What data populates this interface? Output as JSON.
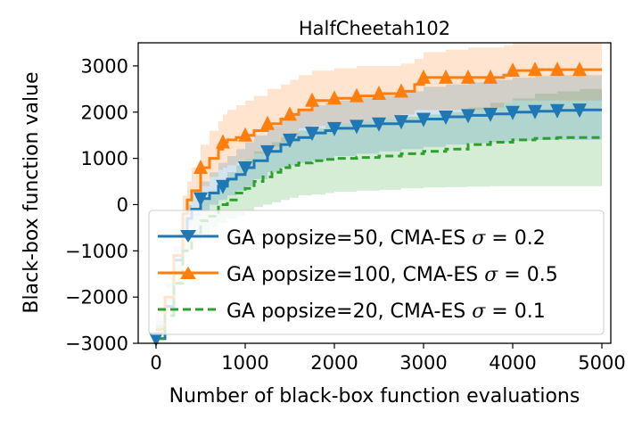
{
  "chart_data": {
    "type": "line",
    "title": "HalfCheetah102",
    "xlabel": "Number of black-box function evaluations",
    "ylabel": "Black-box function value",
    "xlim": [
      -200,
      5100
    ],
    "ylim": [
      -3000,
      3500
    ],
    "xticks": [
      0,
      1000,
      2000,
      3000,
      4000,
      5000
    ],
    "xtick_labels": [
      "0",
      "1000",
      "2000",
      "3000",
      "4000",
      "5000"
    ],
    "yticks": [
      -3000,
      -2000,
      -1000,
      0,
      1000,
      2000,
      3000
    ],
    "ytick_labels": [
      "−3000",
      "−2000",
      "−1000",
      "0",
      "1000",
      "2000",
      "3000"
    ],
    "legend_position": "lower-right",
    "series": [
      {
        "name_prefix": "GA popsize=50, CMA-ES ",
        "sigma_value": "0.2",
        "color": "#1f77b4",
        "linestyle": "solid",
        "marker": "triangle-down",
        "x": [
          0,
          100,
          200,
          300,
          350,
          400,
          500,
          600,
          700,
          800,
          900,
          1000,
          1100,
          1250,
          1400,
          1500,
          1600,
          1750,
          1900,
          2000,
          2250,
          2500,
          2750,
          3000,
          3250,
          3500,
          3750,
          4000,
          4250,
          4500,
          4750,
          5000
        ],
        "y": [
          -2900,
          -2200,
          -1200,
          -700,
          -300,
          -100,
          130,
          250,
          400,
          550,
          650,
          800,
          950,
          1150,
          1300,
          1400,
          1450,
          1550,
          1600,
          1650,
          1700,
          1750,
          1800,
          1850,
          1900,
          1930,
          1960,
          2000,
          2020,
          2040,
          2050,
          2050
        ],
        "band_upper": [
          -2500,
          -1700,
          -900,
          -300,
          0,
          200,
          500,
          700,
          900,
          1050,
          1200,
          1350,
          1500,
          1700,
          1850,
          1950,
          2050,
          2150,
          2200,
          2250,
          2300,
          2350,
          2450,
          2550,
          2600,
          2650,
          2700,
          2750,
          2780,
          2800,
          2800,
          2800
        ],
        "band_lower": [
          -3000,
          -2700,
          -1800,
          -1200,
          -700,
          -500,
          -250,
          -150,
          0,
          100,
          200,
          300,
          400,
          550,
          700,
          800,
          850,
          900,
          950,
          1000,
          1050,
          1100,
          1150,
          1200,
          1250,
          1300,
          1330,
          1350,
          1380,
          1400,
          1400,
          1400
        ],
        "marker_x": [
          0,
          500,
          750,
          1000,
          1250,
          1500,
          1750,
          2000,
          2250,
          2500,
          2750,
          3000,
          3250,
          3500,
          3750,
          4000,
          4250,
          4500,
          4750
        ]
      },
      {
        "name_prefix": "GA popsize=100, CMA-ES ",
        "sigma_value": "0.5",
        "color": "#ff7f0e",
        "linestyle": "solid",
        "marker": "triangle-up",
        "x": [
          0,
          100,
          200,
          300,
          350,
          400,
          500,
          600,
          700,
          750,
          800,
          900,
          1000,
          1100,
          1250,
          1400,
          1500,
          1600,
          1750,
          2000,
          2250,
          2500,
          2750,
          2900,
          3000,
          3250,
          3500,
          3750,
          3900,
          4000,
          4250,
          4500,
          4750,
          5000
        ],
        "y": [
          -2700,
          -2000,
          -1100,
          -200,
          100,
          300,
          800,
          1000,
          1200,
          1350,
          1400,
          1450,
          1500,
          1600,
          1750,
          1850,
          1950,
          2050,
          2250,
          2300,
          2350,
          2400,
          2450,
          2600,
          2750,
          2750,
          2750,
          2750,
          2800,
          2900,
          2920,
          2920,
          2920,
          2920
        ],
        "band_upper": [
          -2300,
          -1500,
          -600,
          200,
          500,
          800,
          1300,
          1600,
          1800,
          1950,
          2050,
          2150,
          2250,
          2350,
          2500,
          2600,
          2700,
          2800,
          2900,
          2950,
          3000,
          3000,
          3050,
          3150,
          3300,
          3350,
          3400,
          3400,
          3450,
          3500,
          3500,
          3500,
          3500,
          3500
        ],
        "band_lower": [
          -3000,
          -2500,
          -1600,
          -700,
          -400,
          -200,
          200,
          400,
          600,
          750,
          800,
          850,
          900,
          1000,
          1100,
          1250,
          1350,
          1450,
          1650,
          1700,
          1750,
          1800,
          1850,
          1950,
          2050,
          2050,
          2050,
          2050,
          2100,
          2200,
          2250,
          2250,
          2250,
          2250
        ],
        "marker_x": [
          500,
          750,
          1000,
          1250,
          1500,
          1750,
          2000,
          2250,
          2500,
          2750,
          3000,
          3250,
          3500,
          3750,
          4000,
          4250,
          4500,
          4750
        ]
      },
      {
        "name_prefix": "GA popsize=20, CMA-ES ",
        "sigma_value": "0.1",
        "color": "#2ca02c",
        "linestyle": "dashed",
        "marker": "none",
        "x": [
          0,
          100,
          200,
          300,
          400,
          500,
          600,
          700,
          800,
          900,
          1000,
          1100,
          1200,
          1300,
          1400,
          1500,
          1600,
          1750,
          1900,
          2000,
          2250,
          2500,
          2750,
          3000,
          3250,
          3500,
          3750,
          4000,
          4250,
          4500,
          4750,
          5000
        ],
        "y": [
          -2900,
          -2400,
          -1700,
          -1000,
          -600,
          -350,
          -250,
          0,
          100,
          250,
          350,
          500,
          600,
          700,
          800,
          850,
          900,
          950,
          980,
          1000,
          1020,
          1050,
          1100,
          1150,
          1200,
          1300,
          1350,
          1400,
          1430,
          1450,
          1450,
          1450
        ],
        "band_upper": [
          -2600,
          -2000,
          -1300,
          -600,
          -200,
          100,
          300,
          500,
          700,
          850,
          1000,
          1150,
          1250,
          1350,
          1450,
          1550,
          1600,
          1650,
          1700,
          1750,
          1800,
          1850,
          1900,
          1950,
          2000,
          2100,
          2200,
          2300,
          2400,
          2450,
          2500,
          2500
        ],
        "band_lower": [
          -3000,
          -2800,
          -2100,
          -1500,
          -1000,
          -800,
          -700,
          -500,
          -400,
          -300,
          -250,
          -150,
          -50,
          0,
          50,
          100,
          150,
          200,
          220,
          250,
          280,
          300,
          320,
          350,
          370,
          380,
          390,
          400,
          400,
          400,
          400,
          400
        ],
        "marker_x": []
      }
    ]
  }
}
